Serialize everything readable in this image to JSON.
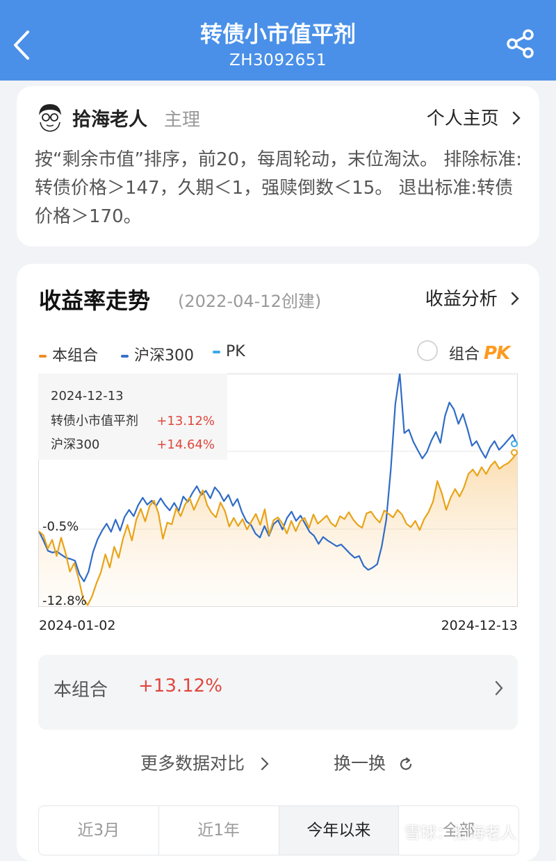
{
  "header": {
    "title": "转债小市值平剂",
    "code": "ZH3092651"
  },
  "author": {
    "name": "拾海老人",
    "role": "主理",
    "homepage_label": "个人主页"
  },
  "description": "按“剩余市值”排序，前20，每周轮动，末位淘汰。 排除标准:转债价格＞147，久期＜1，强赎倒数＜15。 退出标准:转债价格＞170。",
  "section": {
    "title": "收益率走势",
    "created": "(2022-04-12创建)",
    "analysis_label": "收益分析"
  },
  "legend": [
    {
      "label": "本组合",
      "color": "#f08a24"
    },
    {
      "label": "沪深300",
      "color": "#3872c8"
    },
    {
      "label": "PK",
      "color": "#3aa9e6"
    }
  ],
  "pk_toggle": {
    "label": "组合",
    "badge": "PK"
  },
  "tooltip": {
    "date": "2024-12-13",
    "rows": [
      {
        "name": "转债小市值平剂",
        "value": "+13.12%"
      },
      {
        "name": "沪深300",
        "value": "+14.64%"
      }
    ]
  },
  "chart_data": {
    "type": "line",
    "x_start": "2024-01-02",
    "x_end": "2024-12-13",
    "y_tick_labels": [
      "-0.5%",
      "-12.8%"
    ],
    "y_ticks": [
      -0.5,
      -12.8
    ],
    "ylim": [
      -13.6,
      26.8
    ],
    "series": [
      {
        "name": "本组合",
        "color": "#e8a318",
        "values": [
          -0.5,
          -1.2,
          -3.5,
          -2.0,
          -4.8,
          -1.6,
          -4.2,
          -7.5,
          -6.0,
          -8.8,
          -12.2,
          -13.3,
          -11.8,
          -9.5,
          -7.6,
          -4.5,
          -6.8,
          -3.2,
          -5.1,
          -1.8,
          0.6,
          -2.1,
          1.5,
          3.4,
          1.2,
          3.9,
          4.8,
          2.6,
          -1.8,
          1.0,
          0.7,
          3.5,
          2.1,
          4.1,
          5.3,
          3.2,
          4.9,
          6.6,
          4.0,
          2.7,
          1.9,
          4.5,
          3.0,
          0.3,
          1.8,
          0.4,
          1.6,
          -0.2,
          1.2,
          2.5,
          0.6,
          3.3,
          -1.1,
          1.4,
          1.9,
          0.8,
          -0.9,
          1.3,
          -0.5,
          1.2,
          1.8,
          0.1,
          2.4,
          0.8,
          1.5,
          2.2,
          0.9,
          0.3,
          2.1,
          1.6,
          2.8,
          1.5,
          0.6,
          0.1,
          2.6,
          2.9,
          1.8,
          1.0,
          3.1,
          2.5,
          1.9,
          3.2,
          2.4,
          0.8,
          0.2,
          1.3,
          -0.3,
          1.6,
          2.8,
          4.6,
          8.2,
          6.1,
          3.2,
          5.3,
          6.8,
          5.5,
          7.1,
          9.4,
          10.2,
          9.1,
          10.6,
          9.4,
          10.8,
          11.6,
          10.3,
          10.9,
          11.3,
          12.1,
          13.12
        ]
      },
      {
        "name": "沪深300",
        "color": "#2f6bc6",
        "values": [
          -0.5,
          -2.1,
          -3.9,
          -4.2,
          -4.0,
          -4.6,
          -5.1,
          -5.3,
          -5.6,
          -8.0,
          -9.2,
          -7.5,
          -4.1,
          -1.9,
          -0.4,
          0.8,
          -0.6,
          1.5,
          -0.4,
          2.0,
          3.2,
          2.1,
          4.0,
          5.3,
          4.1,
          4.8,
          3.9,
          5.2,
          4.0,
          3.1,
          4.4,
          3.0,
          5.5,
          4.6,
          6.1,
          7.3,
          5.8,
          6.5,
          5.2,
          7.1,
          6.2,
          4.7,
          5.8,
          3.9,
          5.1,
          2.8,
          1.2,
          0.6,
          -0.9,
          -1.6,
          0.4,
          -1.3,
          0.7,
          1.4,
          -0.2,
          1.8,
          2.9,
          1.3,
          2.2,
          0.8,
          -0.6,
          -1.3,
          -2.7,
          -1.5,
          -2.1,
          -2.6,
          -3.1,
          -2.8,
          -3.6,
          -4.4,
          -5.1,
          -4.8,
          -6.5,
          -7.2,
          -6.8,
          -6.2,
          -3.1,
          1.5,
          10.2,
          21.5,
          26.8,
          16.5,
          17.1,
          15.0,
          13.5,
          12.1,
          13.2,
          15.2,
          16.7,
          14.8,
          19.4,
          21.8,
          20.6,
          18.1,
          19.8,
          17.2,
          14.3,
          15.1,
          13.5,
          12.2,
          14.0,
          15.1,
          13.6,
          14.4,
          15.3,
          16.2,
          14.64
        ]
      }
    ]
  },
  "summary": {
    "label": "本组合",
    "value": "+13.12%"
  },
  "links": {
    "more": "更多数据对比",
    "swap": "换一换"
  },
  "tabs": [
    {
      "label": "近3月",
      "active": false
    },
    {
      "label": "近1年",
      "active": false
    },
    {
      "label": "今年以来",
      "active": true
    },
    {
      "label": "全部",
      "active": false
    }
  ],
  "watermark": "雪球：拾海老人"
}
